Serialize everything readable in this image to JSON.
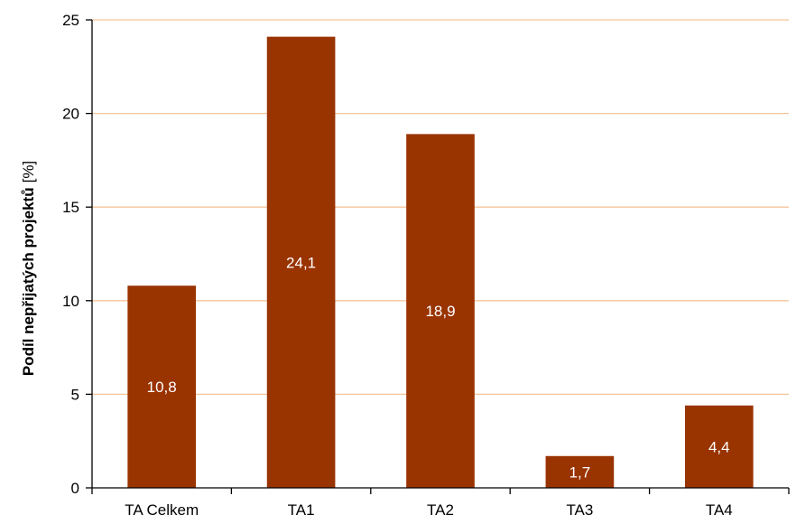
{
  "chart_data": {
    "type": "bar",
    "categories": [
      "TA Celkem",
      "TA1",
      "TA2",
      "TA3",
      "TA4"
    ],
    "values": [
      10.8,
      24.1,
      18.9,
      1.7,
      4.4
    ],
    "data_labels": [
      "10,8",
      "24,1",
      "18,9",
      "1,7",
      "4,4"
    ],
    "title": "",
    "xlabel": "",
    "ylabel": "Podíl nepřijatých projektů",
    "ylabel_unit": "[%]",
    "ylim": [
      0,
      25
    ],
    "yticks": [
      0,
      5,
      10,
      15,
      20,
      25
    ],
    "grid": true,
    "legend": "none",
    "colors": {
      "bar": "#993300",
      "grid": "#f5c49a",
      "axis": "#000000"
    }
  }
}
